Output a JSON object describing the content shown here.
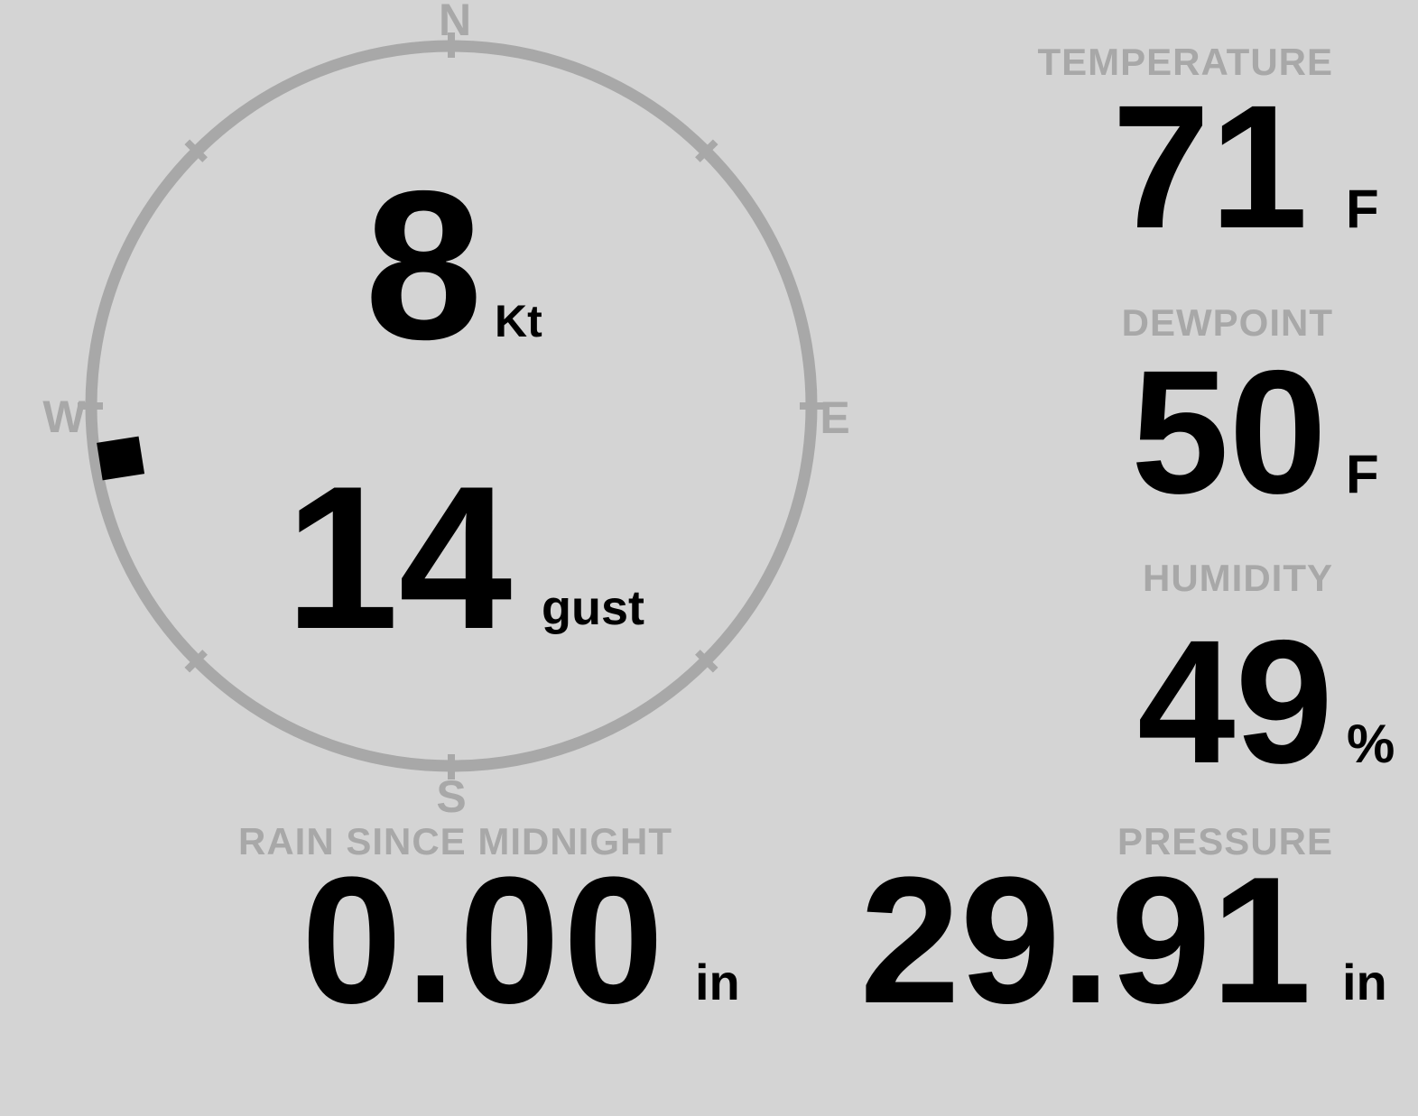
{
  "theme": {
    "background": "#d4d4d4",
    "muted_gray": "#a8a8a8",
    "ink": "#000000"
  },
  "wind": {
    "compass": {
      "north": "N",
      "east": "E",
      "south": "S",
      "west": "W"
    },
    "speed": {
      "value": "8",
      "unit": "Kt"
    },
    "gust": {
      "value": "14",
      "unit": "gust"
    },
    "direction_deg": 261
  },
  "metrics": {
    "temperature": {
      "label": "TEMPERATURE",
      "value": "71",
      "unit": "F"
    },
    "dewpoint": {
      "label": "DEWPOINT",
      "value": "50",
      "unit": "F"
    },
    "humidity": {
      "label": "HUMIDITY",
      "value": "49",
      "unit": "%"
    },
    "rain": {
      "label": "RAIN SINCE MIDNIGHT",
      "value": "0.00",
      "unit": "in"
    },
    "pressure": {
      "label": "PRESSURE",
      "value": "29.91",
      "unit": "in"
    }
  }
}
